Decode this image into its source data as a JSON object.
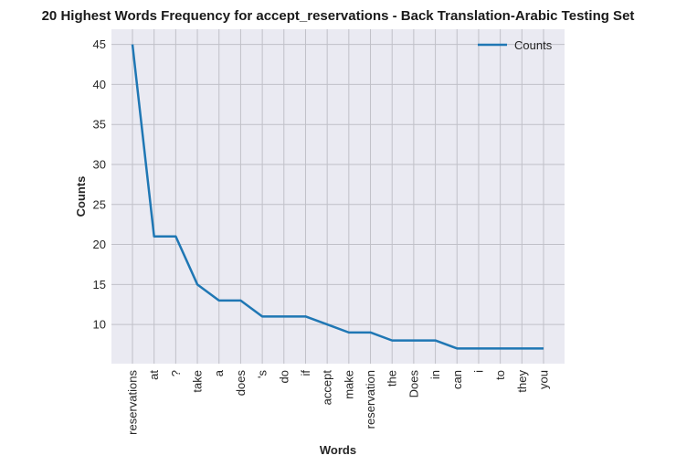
{
  "chart_data": {
    "type": "line",
    "title": "20 Highest Words Frequency for accept_reservations - Back Translation-Arabic Testing Set",
    "xlabel": "Words",
    "ylabel": "Counts",
    "categories": [
      "reservations",
      "at",
      "?",
      "take",
      "a",
      "does",
      "'s",
      "do",
      "if",
      "accept",
      "make",
      "reservation",
      "the",
      "Does",
      "in",
      "can",
      "i",
      "to",
      "they",
      "you"
    ],
    "series": [
      {
        "name": "Counts",
        "values": [
          45,
          21,
          21,
          15,
          13,
          13,
          11,
          11,
          11,
          10,
          9,
          9,
          8,
          8,
          8,
          7,
          7,
          7,
          7,
          7
        ]
      }
    ],
    "yticks": [
      10,
      15,
      20,
      25,
      30,
      35,
      40,
      45
    ],
    "ylim": [
      5.1,
      46.9
    ],
    "grid": true,
    "legend_position": "top-right",
    "colors": {
      "line": "#1f77b4",
      "background": "#eaeaf2",
      "grid": "#c0c0c8"
    }
  }
}
